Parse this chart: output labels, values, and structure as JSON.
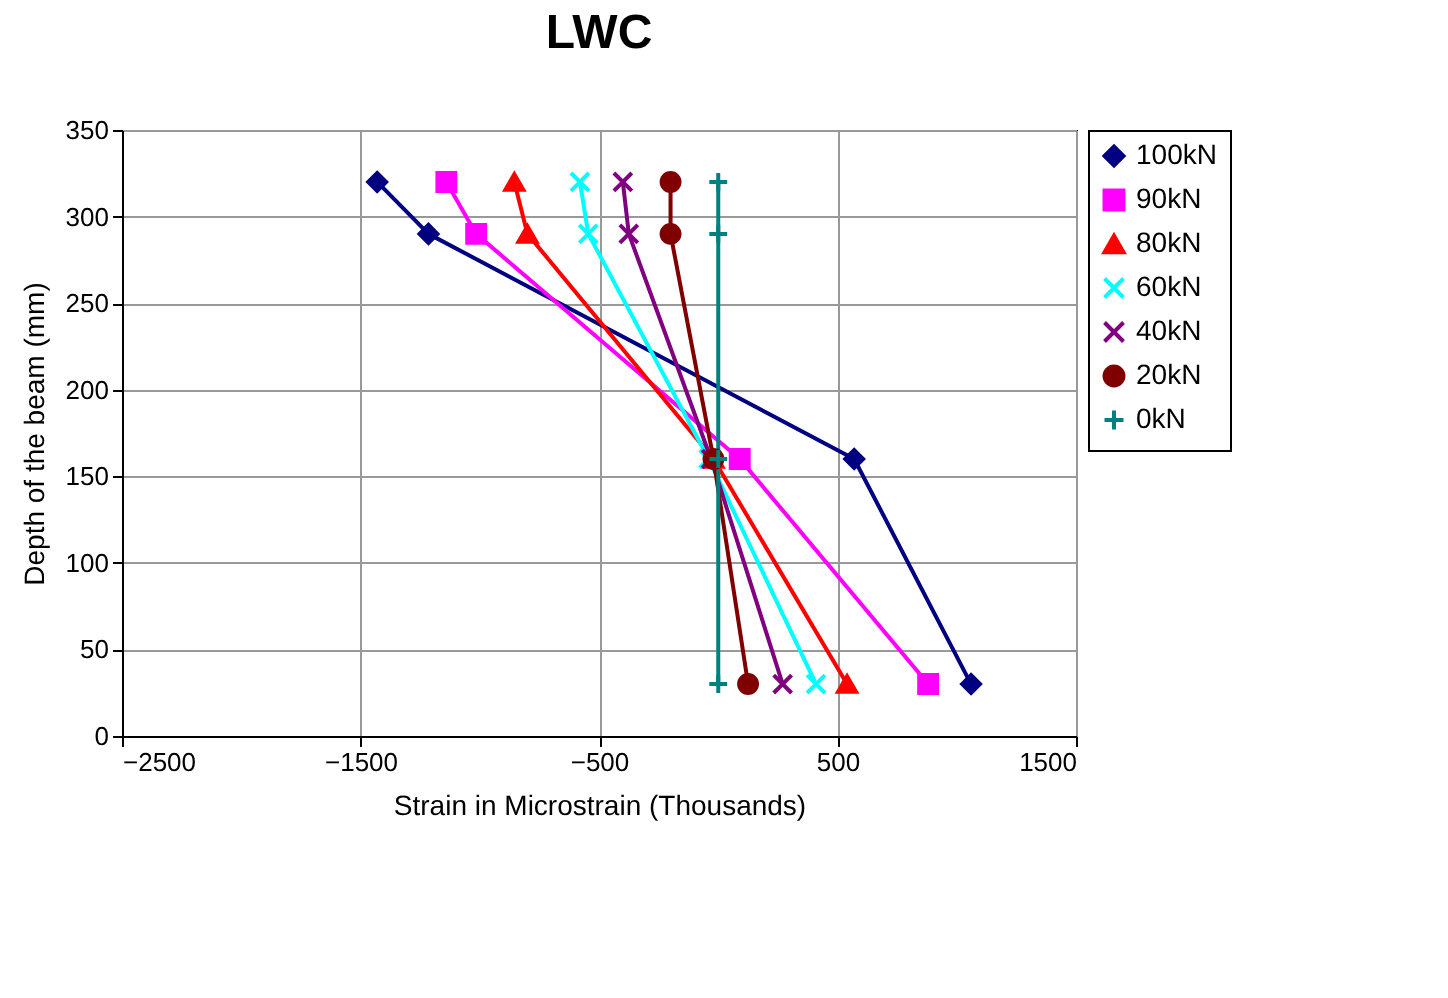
{
  "chart_data": {
    "type": "line",
    "title": "LWC",
    "xlabel": "Strain in Microstrain (Thousands)",
    "ylabel": "Depth of the beam (mm)",
    "xlim": [
      -2500,
      1500
    ],
    "xticks": [
      -2500,
      -1500,
      -500,
      500,
      1500
    ],
    "ylim": [
      0,
      350
    ],
    "yticks": [
      0,
      50,
      100,
      150,
      200,
      250,
      300,
      350
    ],
    "grid": true,
    "legend": "right",
    "series": [
      {
        "name": "100kN",
        "color": "#000080",
        "marker": "diamond",
        "x": [
          -1430,
          -1215,
          570,
          1060
        ],
        "values": [
          320,
          290,
          160,
          30
        ]
      },
      {
        "name": "90kN",
        "color": "#ff00ff",
        "marker": "square",
        "x": [
          -1140,
          -1015,
          90,
          880
        ],
        "values": [
          320,
          290,
          160,
          30
        ]
      },
      {
        "name": "80kN",
        "color": "#ff0000",
        "marker": "triangle",
        "x": [
          -855,
          -800,
          -20,
          540
        ],
        "values": [
          320,
          290,
          160,
          30
        ]
      },
      {
        "name": "60kN",
        "color": "#00ffff",
        "marker": "cross",
        "x": [
          -580,
          -545,
          -40,
          410
        ],
        "values": [
          320,
          290,
          160,
          30
        ]
      },
      {
        "name": "40kN",
        "color": "#800080",
        "marker": "cross",
        "x": [
          -400,
          -375,
          -30,
          270
        ],
        "values": [
          320,
          290,
          160,
          30
        ]
      },
      {
        "name": "20kN",
        "color": "#800000",
        "marker": "circle",
        "x": [
          -200,
          -200,
          -20,
          125
        ],
        "values": [
          320,
          290,
          160,
          30
        ]
      },
      {
        "name": "0kN",
        "color": "#008080",
        "marker": "plus",
        "x": [
          0,
          0,
          0,
          0
        ],
        "values": [
          320,
          290,
          160,
          30
        ]
      }
    ]
  }
}
